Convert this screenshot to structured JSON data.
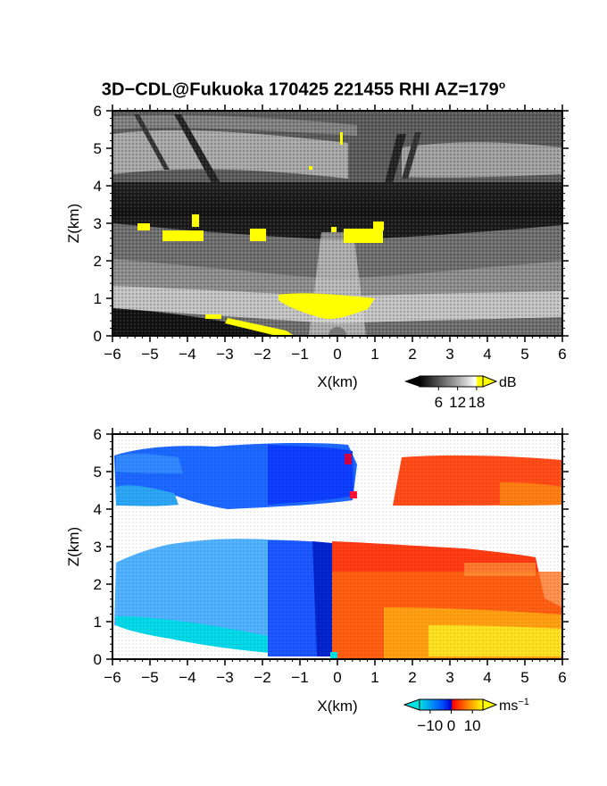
{
  "page": {
    "title": "3D−CDL@Fukuoka 170425 221455 RHI AZ=179",
    "title_degree": "o"
  },
  "chart_data": [
    {
      "type": "heatmap",
      "variable": "backscatter",
      "xlabel": "X(km)",
      "ylabel": "Z(km)",
      "xlim": [
        -6,
        6
      ],
      "ylim": [
        0,
        6
      ],
      "xticks": [
        "−6",
        "−5",
        "−4",
        "−3",
        "−2",
        "−1",
        "0",
        "1",
        "2",
        "3",
        "4",
        "5",
        "6"
      ],
      "yticks": [
        "0",
        "1",
        "2",
        "3",
        "4",
        "5",
        "6"
      ],
      "colorbar": {
        "unit": "dB",
        "ticks": [
          "6",
          "12",
          "18"
        ],
        "range": [
          0,
          20
        ],
        "colors": [
          "#000000",
          "#ffffff",
          "#ffff00"
        ]
      },
      "features": [
        {
          "name": "upper cloud layer",
          "x": [
            -6,
            6
          ],
          "z": [
            4.3,
            6
          ],
          "level_dB": 10
        },
        {
          "name": "dark gap",
          "x": [
            -6,
            6
          ],
          "z": [
            3.4,
            4.2
          ],
          "level_dB": 3
        },
        {
          "name": "boundary layer",
          "x": [
            -6,
            6
          ],
          "z": [
            0,
            3.1
          ],
          "level_dB": 11
        },
        {
          "name": "strong return near 3 km",
          "x": [
            -5.4,
            1.2
          ],
          "z": [
            2.5,
            3.1
          ],
          "level_dB": 19
        },
        {
          "name": "strong return near surface",
          "x": [
            -1.6,
            1.0
          ],
          "z": [
            0.4,
            1.1
          ],
          "level_dB": 19
        }
      ]
    },
    {
      "type": "heatmap",
      "variable": "radial velocity",
      "xlabel": "X(km)",
      "ylabel": "Z(km)",
      "xlim": [
        -6,
        6
      ],
      "ylim": [
        0,
        6
      ],
      "xticks": [
        "−6",
        "−5",
        "−4",
        "−3",
        "−2",
        "−1",
        "0",
        "1",
        "2",
        "3",
        "4",
        "5",
        "6"
      ],
      "yticks": [
        "0",
        "1",
        "2",
        "3",
        "4",
        "5",
        "6"
      ],
      "colorbar": {
        "unit": "ms",
        "unit_exponent": "−1",
        "ticks": [
          "−10",
          "0",
          "10"
        ],
        "range": [
          -15,
          15
        ],
        "colors": [
          "#00e0e0",
          "#0033ff",
          "#ff0000",
          "#ffff00"
        ]
      },
      "features": [
        {
          "name": "upper layer left",
          "x": [
            -6,
            0.7
          ],
          "z": [
            4.1,
            5.9
          ],
          "velocity": -9
        },
        {
          "name": "upper layer right",
          "x": [
            1.4,
            6
          ],
          "z": [
            4.1,
            5.5
          ],
          "velocity": 8
        },
        {
          "name": "lower layer left",
          "x": [
            -6,
            0
          ],
          "z": [
            0.1,
            3.2
          ],
          "velocity": -9
        },
        {
          "name": "lower layer right",
          "x": [
            0,
            6
          ],
          "z": [
            0.1,
            3.1
          ],
          "velocity": 9
        }
      ]
    }
  ]
}
